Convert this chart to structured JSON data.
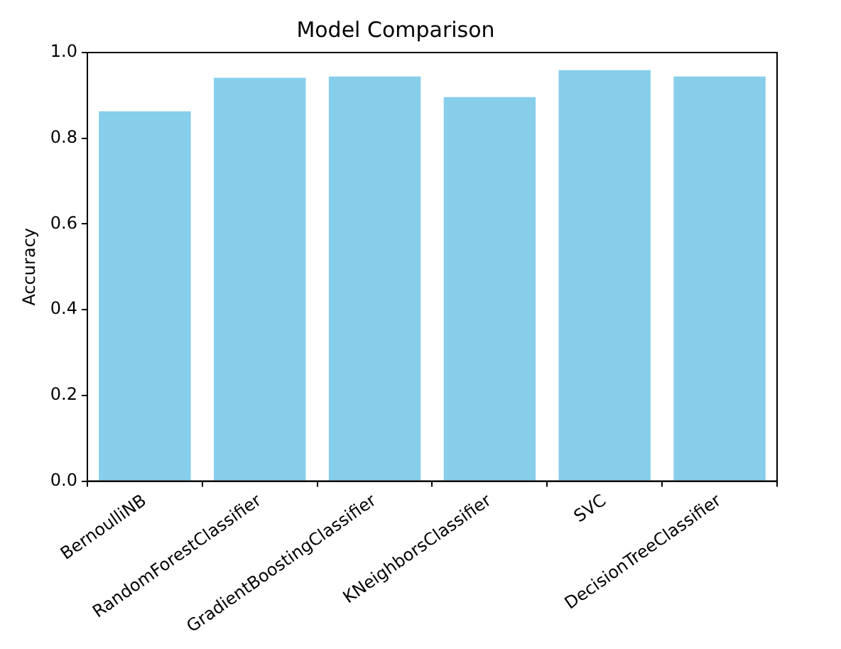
{
  "chart_data": {
    "type": "bar",
    "title": "Model Comparison",
    "ylabel": "Accuracy",
    "categories": [
      "BernoulliNB",
      "RandomForestClassifier",
      "GradientBoostingClassifier",
      "KNeighborsClassifier",
      "SVC",
      "DecisionTreeClassifier"
    ],
    "values": [
      0.863,
      0.941,
      0.944,
      0.896,
      0.959,
      0.944
    ],
    "color": "#87ceeb",
    "ylim": [
      0,
      1.0
    ],
    "yticks": [
      {
        "value": 0,
        "label": "0.0"
      },
      {
        "value": 0.2,
        "label": "0.2"
      },
      {
        "value": 0.4,
        "label": "0.4"
      },
      {
        "value": 0.6,
        "label": "0.6"
      },
      {
        "value": 0.8,
        "label": "0.8"
      },
      {
        "value": 1.0,
        "label": "1.0"
      }
    ],
    "grid": false,
    "legend": false
  }
}
